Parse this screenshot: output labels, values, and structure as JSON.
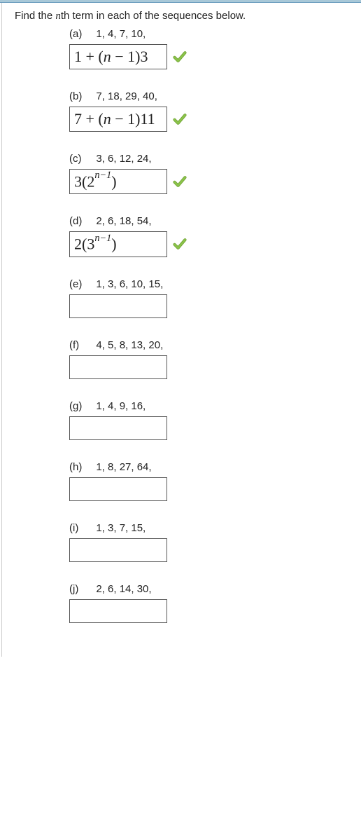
{
  "instruction_prefix": "Find the ",
  "nth": "n",
  "instruction_suffix": "th term in each of the sequences below.",
  "items": [
    {
      "label": "(a)",
      "sequence": "1, 4, 7, 10,",
      "has_answer": true,
      "answer_html": "1 + (<span class='var'>n</span> &minus; 1)3",
      "correct": true
    },
    {
      "label": "(b)",
      "sequence": "7, 18, 29, 40,",
      "has_answer": true,
      "answer_html": "7 + (<span class='var'>n</span> &minus; 1)11",
      "correct": true
    },
    {
      "label": "(c)",
      "sequence": "3, 6, 12, 24,",
      "has_answer": true,
      "answer_html": "3(2<sup>n&minus;1</sup>)",
      "correct": true
    },
    {
      "label": "(d)",
      "sequence": "2, 6, 18, 54,",
      "has_answer": true,
      "answer_html": "2(3<sup>n&minus;1</sup>)",
      "correct": true
    },
    {
      "label": "(e)",
      "sequence": "1, 3, 6, 10, 15,",
      "has_answer": false,
      "answer_html": "",
      "correct": false
    },
    {
      "label": "(f)",
      "sequence": "4, 5, 8, 13, 20,",
      "has_answer": false,
      "answer_html": "",
      "correct": false
    },
    {
      "label": "(g)",
      "sequence": "1, 4, 9, 16,",
      "has_answer": false,
      "answer_html": "",
      "correct": false
    },
    {
      "label": "(h)",
      "sequence": "1, 8, 27, 64,",
      "has_answer": false,
      "answer_html": "",
      "correct": false
    },
    {
      "label": "(i)",
      "sequence": "1, 3, 7, 15,",
      "has_answer": false,
      "answer_html": "",
      "correct": false
    },
    {
      "label": "(j)",
      "sequence": "2, 6, 14, 30,",
      "has_answer": false,
      "answer_html": "",
      "correct": false
    }
  ],
  "colors": {
    "check_fill": "#8bc34a",
    "check_stroke": "#6b9e2e"
  }
}
